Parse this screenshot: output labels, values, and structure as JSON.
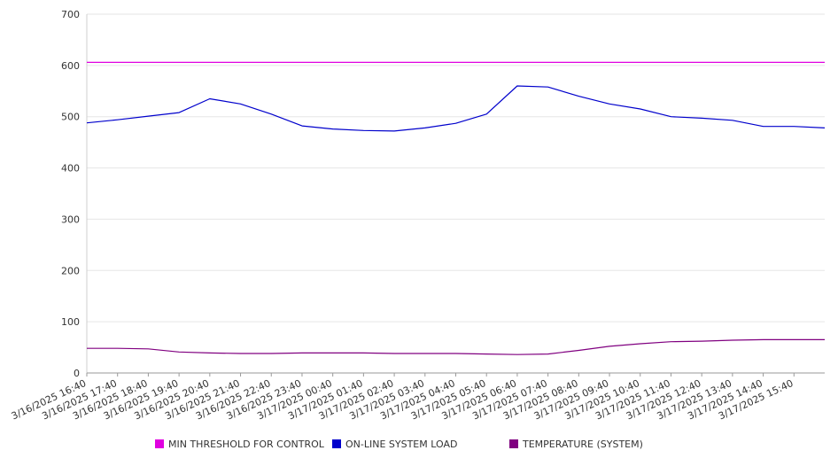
{
  "chart_data": {
    "type": "line",
    "title": "",
    "xlabel": "",
    "ylabel": "",
    "ylim": [
      0,
      700
    ],
    "y_ticks": [
      "0",
      "100",
      "200",
      "300",
      "400",
      "500",
      "600",
      "700"
    ],
    "x_tick_labels": [
      "3/16/2025 16:40",
      "3/16/2025 17:40",
      "3/16/2025 18:40",
      "3/16/2025 19:40",
      "3/16/2025 20:40",
      "3/16/2025 21:40",
      "3/16/2025 22:40",
      "3/16/2025 23:40",
      "3/17/2025 00:40",
      "3/17/2025 01:40",
      "3/17/2025 02:40",
      "3/17/2025 03:40",
      "3/17/2025 04:40",
      "3/17/2025 05:40",
      "3/17/2025 06:40",
      "3/17/2025 07:40",
      "3/17/2025 08:40",
      "3/17/2025 09:40",
      "3/17/2025 10:40",
      "3/17/2025 11:40",
      "3/17/2025 12:40",
      "3/17/2025 13:40",
      "3/17/2025 14:40",
      "3/17/2025 15:40"
    ],
    "grid": true,
    "legend_position": "bottom",
    "series": [
      {
        "name": "MIN THRESHOLD FOR CONTROL",
        "color": "#e000e0",
        "values": [
          606,
          606,
          606,
          606,
          606,
          606,
          606,
          606,
          606,
          606,
          606,
          606,
          606,
          606,
          606,
          606,
          606,
          606,
          606,
          606,
          606,
          606,
          606,
          606,
          606
        ]
      },
      {
        "name": "ON-LINE SYSTEM LOAD",
        "color": "#0000cc",
        "values": [
          488,
          494,
          501,
          508,
          535,
          525,
          505,
          482,
          476,
          473,
          472,
          478,
          487,
          505,
          560,
          558,
          540,
          525,
          515,
          500,
          497,
          493,
          481,
          481,
          478
        ]
      },
      {
        "name": "TEMPERATURE (SYSTEM)",
        "color": "#800080",
        "values": [
          48,
          48,
          47,
          41,
          39,
          38,
          38,
          39,
          39,
          39,
          38,
          38,
          38,
          37,
          36,
          37,
          44,
          52,
          57,
          61,
          62,
          64,
          65,
          65,
          65
        ]
      }
    ]
  }
}
